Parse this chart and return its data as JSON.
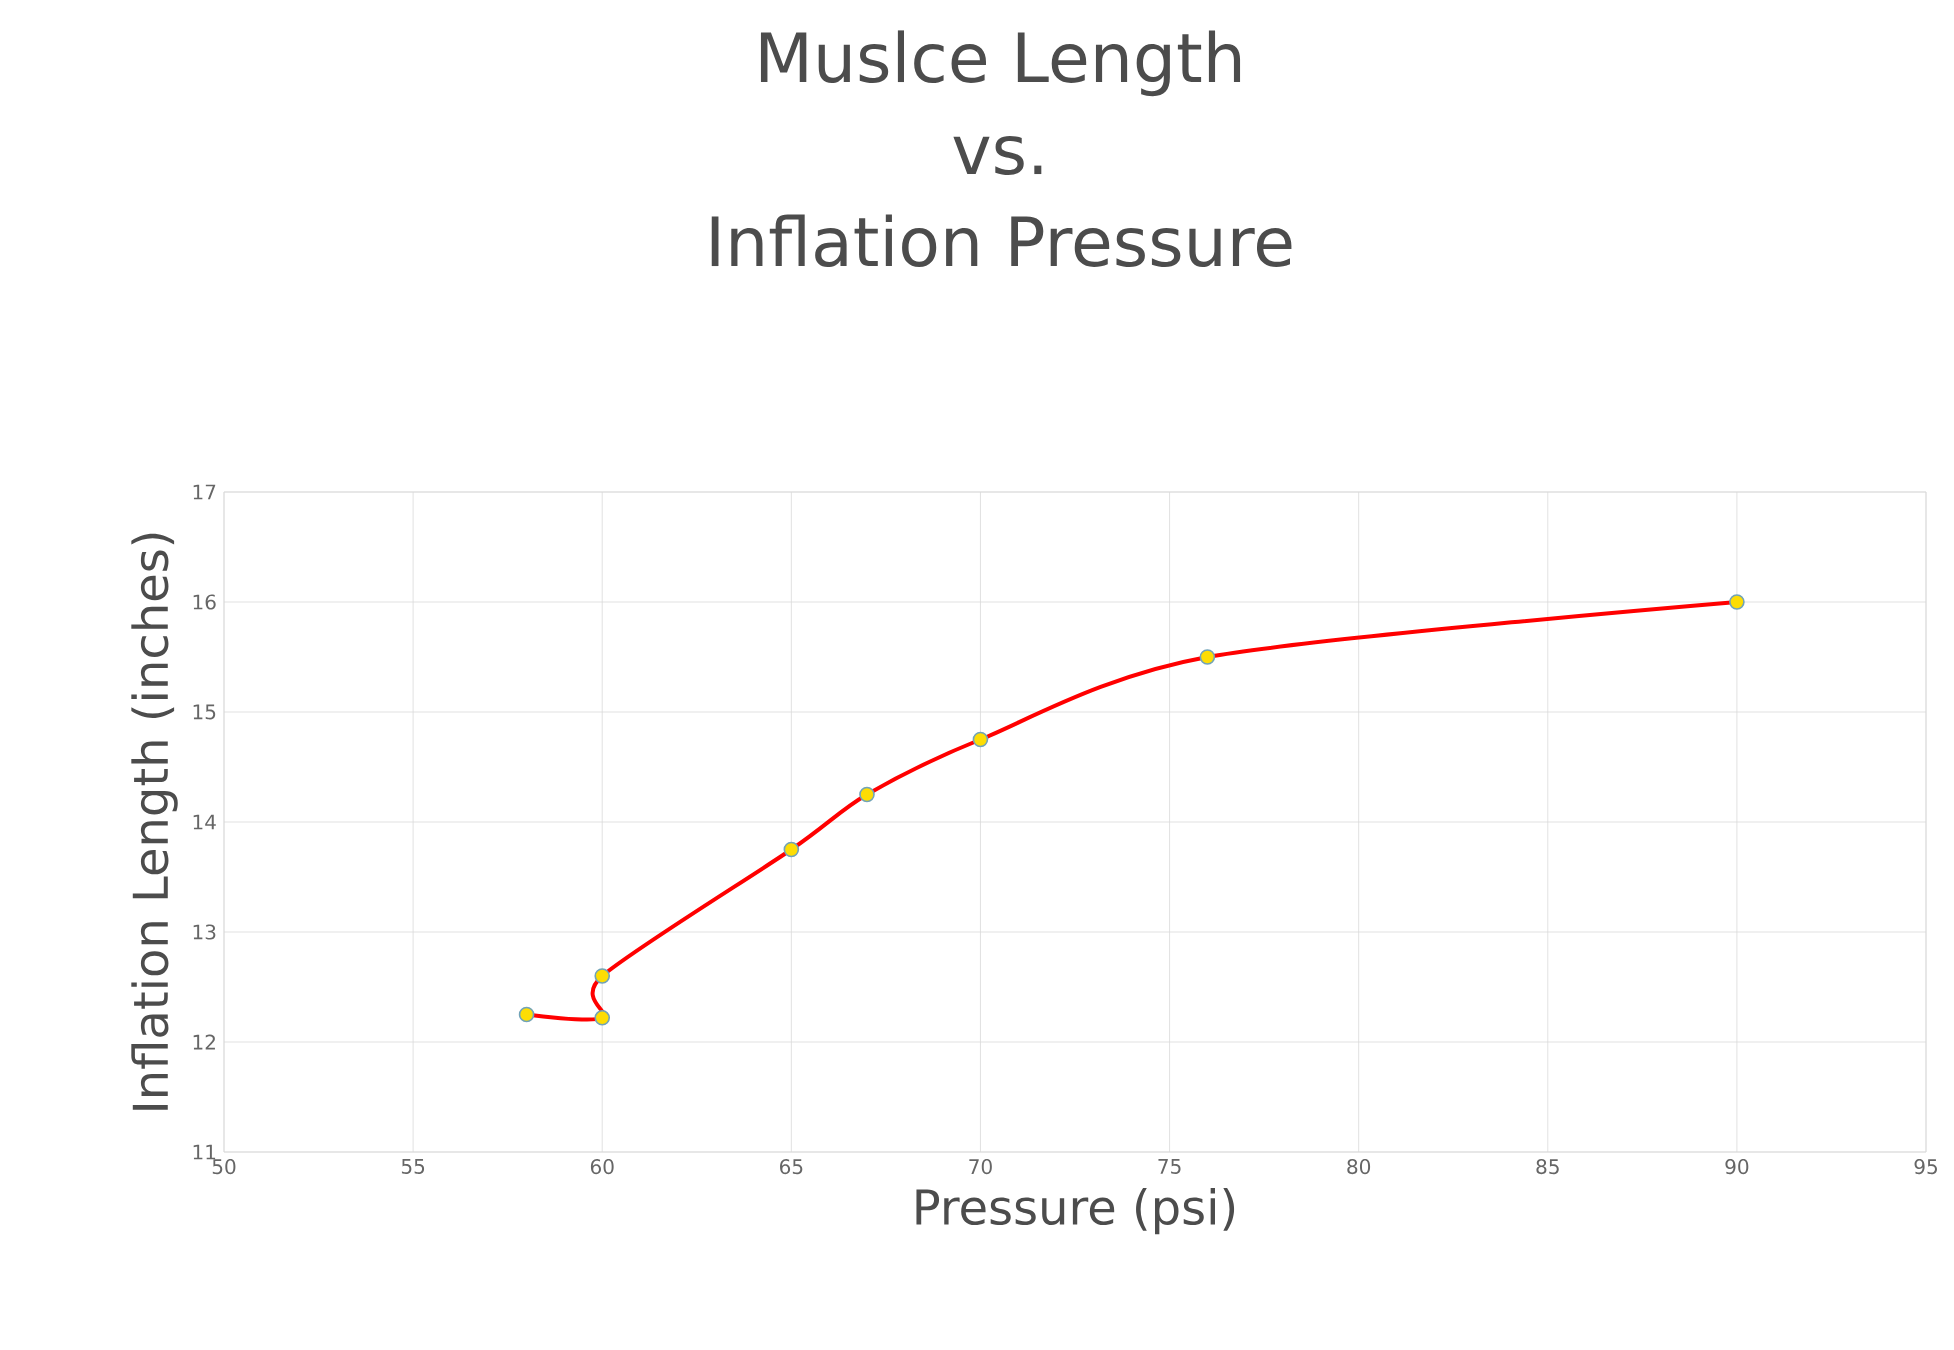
{
  "chart_data": {
    "type": "line",
    "title": "Muslce Length\nvs.\nInflation Pressure",
    "xlabel": "Pressure (psi)",
    "ylabel": "Inflation Length (inches)",
    "x": [
      58,
      60,
      60,
      65,
      67,
      70,
      76,
      90
    ],
    "series": [
      {
        "color": "#ff0000",
        "values": [
          12.25,
          12.22,
          12.6,
          13.75,
          14.25,
          14.75,
          15.5,
          16
        ]
      }
    ],
    "xlim": [
      50,
      95
    ],
    "xticks": [
      50,
      55,
      60,
      65,
      70,
      75,
      80,
      85,
      90,
      95
    ],
    "ylim": [
      11,
      17
    ],
    "yticks": [
      11,
      12,
      13,
      14,
      15,
      16,
      17
    ],
    "grid": true,
    "marker": "circle",
    "line_style": "solid"
  }
}
